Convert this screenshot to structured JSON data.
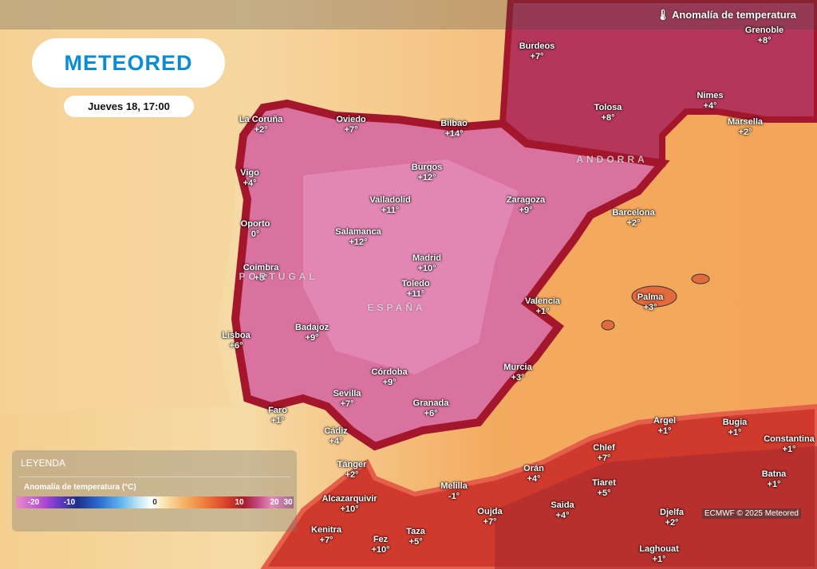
{
  "header": {
    "layer": "Anomalía de temperatura"
  },
  "logo": "METEORED",
  "date": "Jueves 18, 17:00",
  "cities": [
    {
      "name": "Grenoble",
      "anomaly": "+8°"
    },
    {
      "name": "Burdeos",
      "anomaly": "+7°"
    },
    {
      "name": "Tolosa",
      "anomaly": "+8°"
    },
    {
      "name": "Nimes",
      "anomaly": "+4°"
    },
    {
      "name": "Marsella",
      "anomaly": "+2°"
    },
    {
      "name": "La Coruña",
      "anomaly": "+2°"
    },
    {
      "name": "Oviedo",
      "anomaly": "+7°"
    },
    {
      "name": "Bilbao",
      "anomaly": "+14°"
    },
    {
      "name": "Vigo",
      "anomaly": "+4°"
    },
    {
      "name": "Burgos",
      "anomaly": "+12°"
    },
    {
      "name": "Valladolid",
      "anomaly": "+11°"
    },
    {
      "name": "Zaragoza",
      "anomaly": "+9°"
    },
    {
      "name": "Barcelona",
      "anomaly": "+2°"
    },
    {
      "name": "Oporto",
      "anomaly": "0°"
    },
    {
      "name": "Salamanca",
      "anomaly": "+12°"
    },
    {
      "name": "Madrid",
      "anomaly": "+10°"
    },
    {
      "name": "Coimbra",
      "anomaly": "+3°"
    },
    {
      "name": "Toledo",
      "anomaly": "+11°"
    },
    {
      "name": "Palma",
      "anomaly": "+3°"
    },
    {
      "name": "Valencia",
      "anomaly": "+1°"
    },
    {
      "name": "Badajoz",
      "anomaly": "+9°"
    },
    {
      "name": "Lisboa",
      "anomaly": "+6°"
    },
    {
      "name": "Murcia",
      "anomaly": "+3°"
    },
    {
      "name": "Córdoba",
      "anomaly": "+9°"
    },
    {
      "name": "Sevilla",
      "anomaly": "+7°"
    },
    {
      "name": "Granada",
      "anomaly": "+6°"
    },
    {
      "name": "Faro",
      "anomaly": "+1°"
    },
    {
      "name": "Argel",
      "anomaly": "+1°"
    },
    {
      "name": "Bugia",
      "anomaly": "+1°"
    },
    {
      "name": "Cádiz",
      "anomaly": "+4°"
    },
    {
      "name": "Constantina",
      "anomaly": "+1°"
    },
    {
      "name": "Chlef",
      "anomaly": "+7°"
    },
    {
      "name": "Tánger",
      "anomaly": "+2°"
    },
    {
      "name": "Orán",
      "anomaly": "+4°"
    },
    {
      "name": "Batna",
      "anomaly": "+1°"
    },
    {
      "name": "Tiaret",
      "anomaly": "+5°"
    },
    {
      "name": "Melilla",
      "anomaly": "-1°"
    },
    {
      "name": "Alcazarquivir",
      "anomaly": "+10°"
    },
    {
      "name": "Saida",
      "anomaly": "+4°"
    },
    {
      "name": "Oujda",
      "anomaly": "+7°"
    },
    {
      "name": "Djelfa",
      "anomaly": "+2°"
    },
    {
      "name": "Kenitra",
      "anomaly": "+7°"
    },
    {
      "name": "Taza",
      "anomaly": "+5°"
    },
    {
      "name": "Fez",
      "anomaly": "+10°"
    },
    {
      "name": "Laghouat",
      "anomaly": "+1°"
    }
  ],
  "countries": [
    "PORTUGAL",
    "ESPAÑA",
    "ANDORRA"
  ],
  "legend": {
    "title": "LEYENDA",
    "subtitle": "Anomalía de temperatura (°C)",
    "ticks": [
      -20,
      -10,
      0,
      10,
      20,
      30
    ]
  },
  "credit": "ECMWF © 2025 Meteored"
}
